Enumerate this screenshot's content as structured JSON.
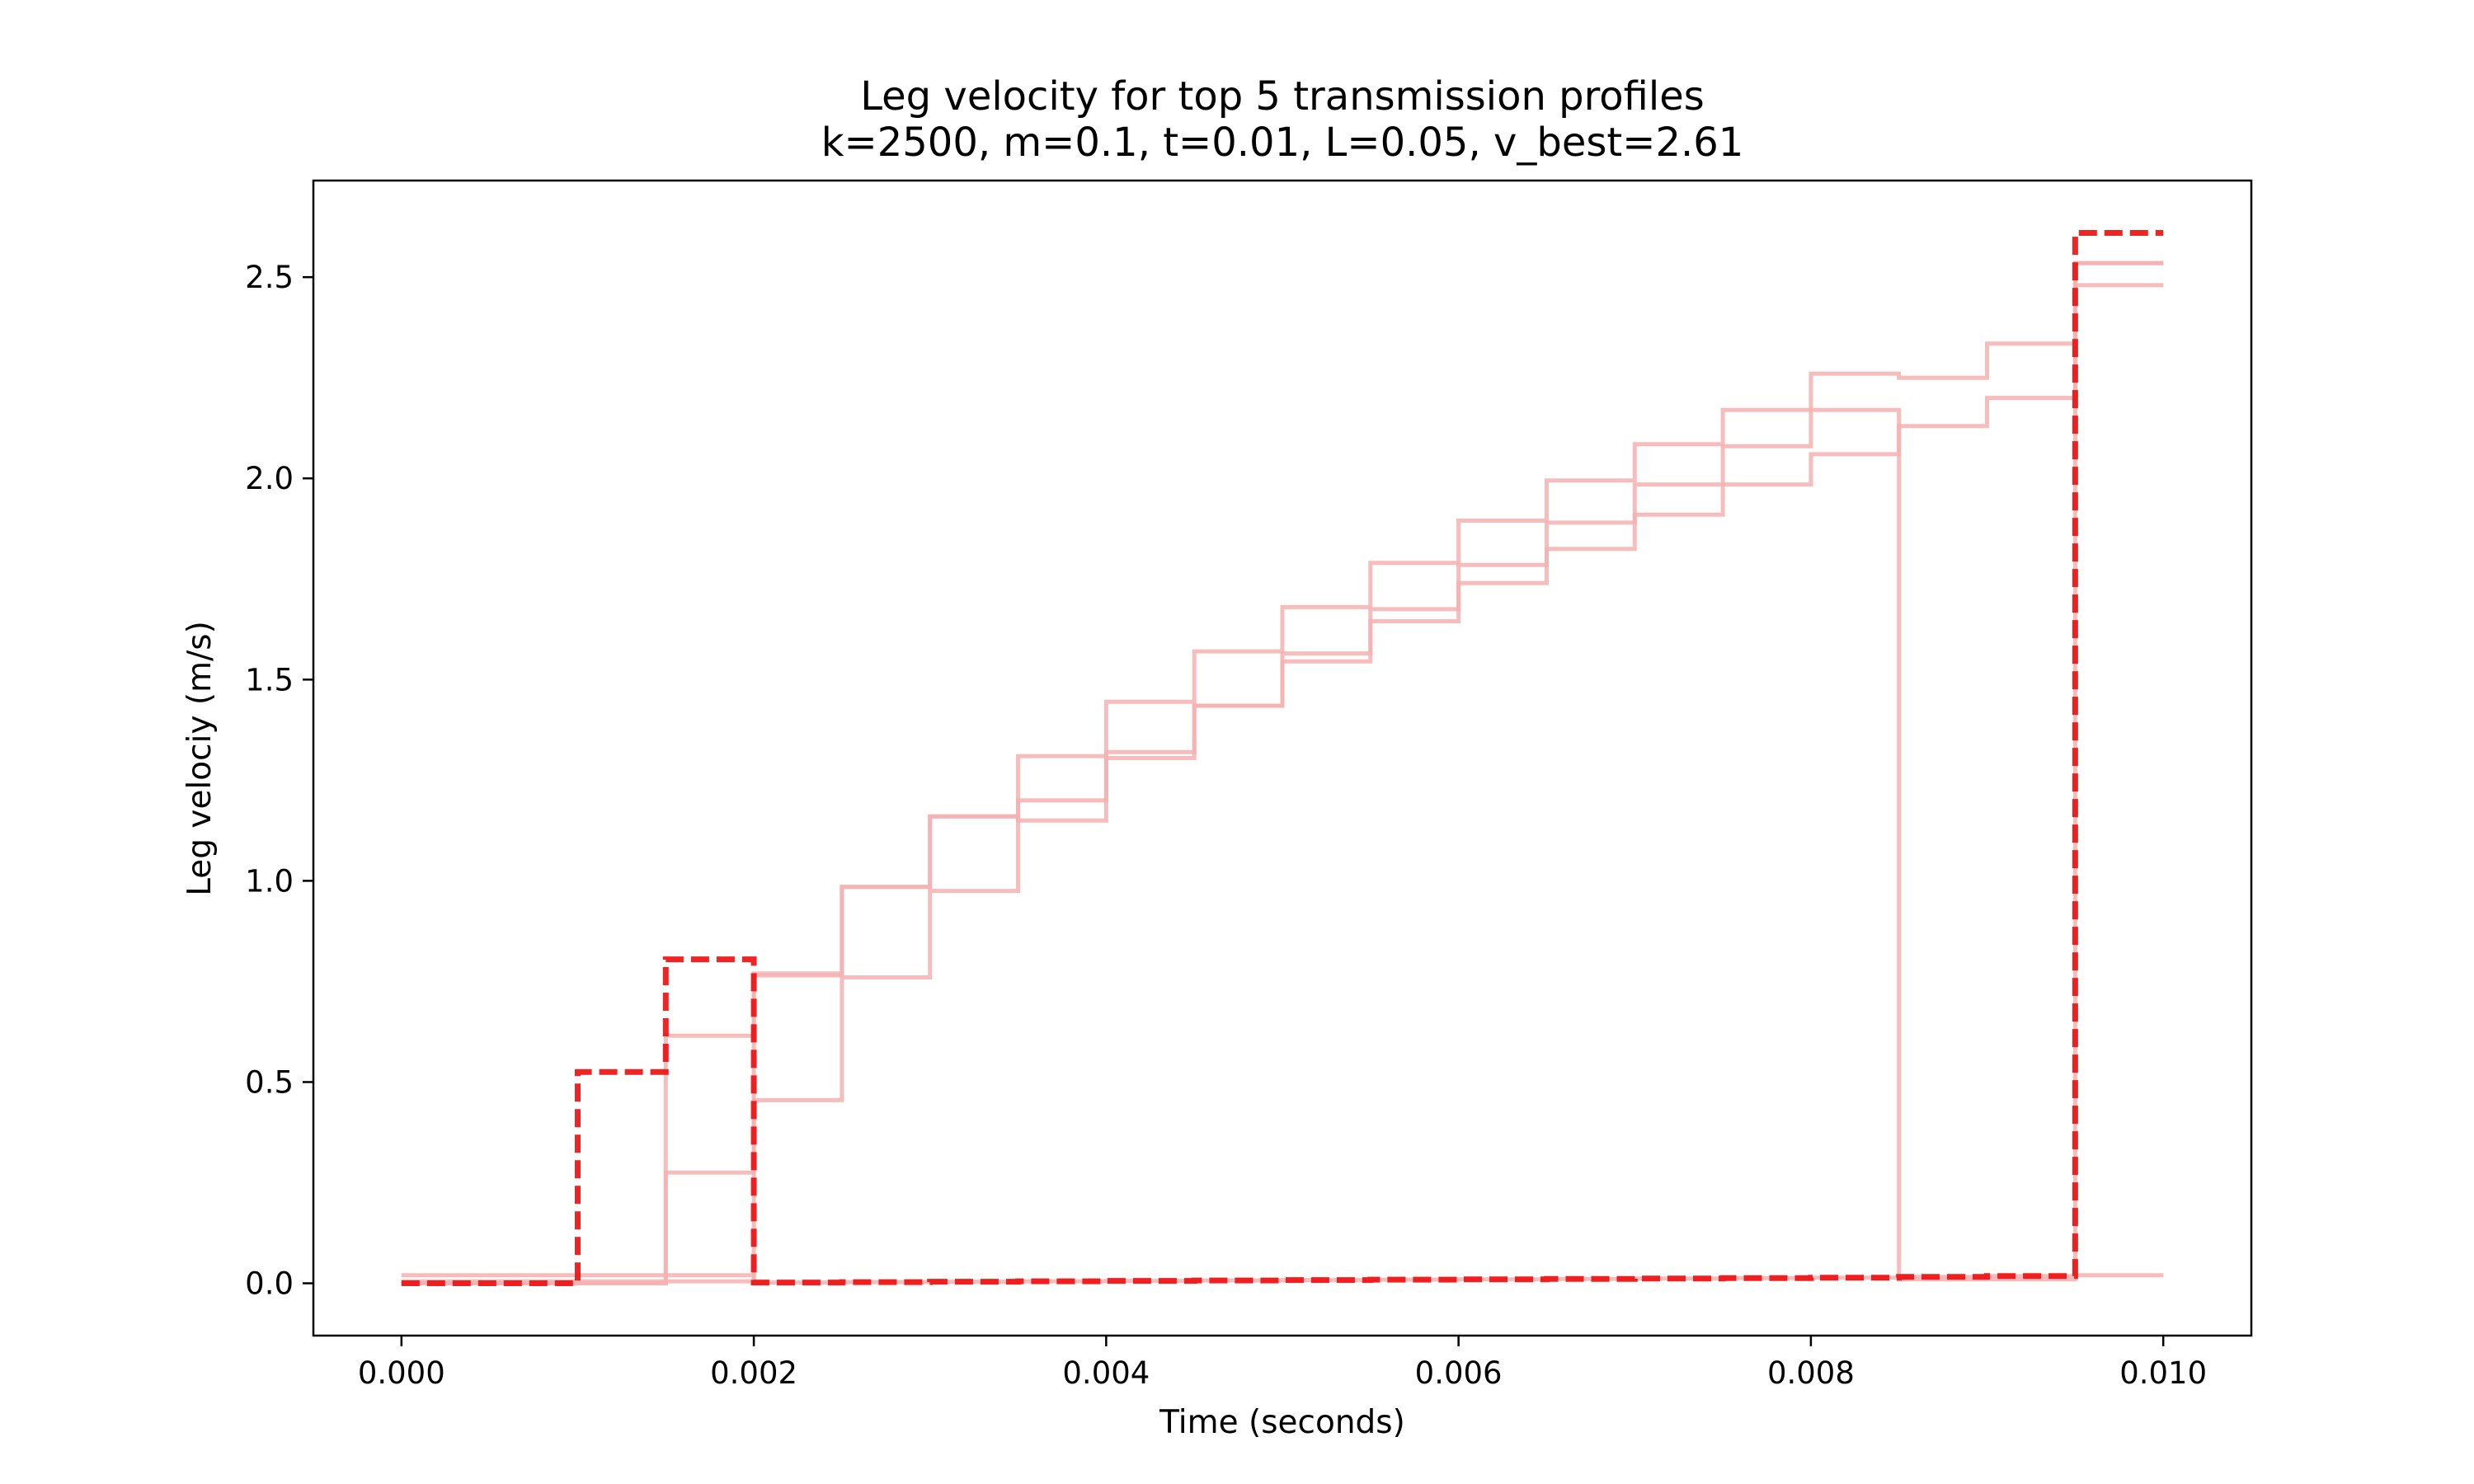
{
  "chart_data": {
    "type": "line",
    "step": "post",
    "title": "Leg velocity for top 5 transmission profiles",
    "subtitle": "k=2500, m=0.1, t=0.01, L=0.05, v_best=2.61",
    "xlabel": "Time (seconds)",
    "ylabel": "Leg velociy (m/s)",
    "xlim": [
      -0.0005,
      0.0105
    ],
    "ylim": [
      -0.13,
      2.74
    ],
    "xticks": [
      0.0,
      0.002,
      0.004,
      0.006,
      0.008,
      0.01
    ],
    "xtick_labels": [
      "0.000",
      "0.002",
      "0.004",
      "0.006",
      "0.008",
      "0.010"
    ],
    "yticks": [
      0.0,
      0.5,
      1.0,
      1.5,
      2.0,
      2.5
    ],
    "ytick_labels": [
      "0.0",
      "0.5",
      "1.0",
      "1.5",
      "2.0",
      "2.5"
    ],
    "grid": false,
    "x": [
      0.0,
      0.0005,
      0.001,
      0.0015,
      0.002,
      0.0025,
      0.003,
      0.0035,
      0.004,
      0.0045,
      0.005,
      0.0055,
      0.006,
      0.0065,
      0.007,
      0.0075,
      0.008,
      0.0085,
      0.009,
      0.0095,
      0.01
    ],
    "series": [
      {
        "style": "best",
        "color": "#ee1111",
        "values": [
          0.0,
          0.0,
          0.525,
          0.805,
          0.002,
          0.003,
          0.004,
          0.005,
          0.006,
          0.007,
          0.008,
          0.009,
          0.01,
          0.011,
          0.012,
          0.013,
          0.014,
          0.016,
          0.018,
          2.61,
          2.61
        ]
      },
      {
        "style": "faint",
        "color": "#f6b2b2",
        "values": [
          0.005,
          0.005,
          0.005,
          0.005,
          0.765,
          0.985,
          1.16,
          1.2,
          1.445,
          1.57,
          1.68,
          1.79,
          1.895,
          1.995,
          2.085,
          2.17,
          2.26,
          2.25,
          2.335,
          2.535,
          2.535
        ]
      },
      {
        "style": "faint",
        "color": "#f6b2b2",
        "values": [
          0.0,
          0.0,
          0.0,
          0.275,
          0.455,
          0.76,
          0.975,
          1.31,
          1.32,
          1.435,
          1.565,
          1.675,
          1.785,
          1.89,
          1.985,
          2.08,
          2.17,
          0.01,
          0.01,
          2.535,
          2.535
        ]
      },
      {
        "style": "faint",
        "color": "#f6b2b2",
        "values": [
          0.0,
          0.0,
          0.0,
          0.615,
          0.77,
          0.985,
          1.16,
          1.15,
          1.305,
          1.435,
          1.545,
          1.645,
          1.74,
          1.825,
          1.91,
          1.985,
          2.06,
          2.13,
          2.2,
          2.48,
          2.48
        ]
      },
      {
        "style": "faint",
        "color": "#f6b2b2",
        "values": [
          0.02,
          0.02,
          0.02,
          0.02,
          0.002,
          0.003,
          0.004,
          0.005,
          0.006,
          0.007,
          0.008,
          0.009,
          0.01,
          0.011,
          0.012,
          0.013,
          0.014,
          0.016,
          0.018,
          0.02,
          0.02
        ]
      }
    ]
  }
}
